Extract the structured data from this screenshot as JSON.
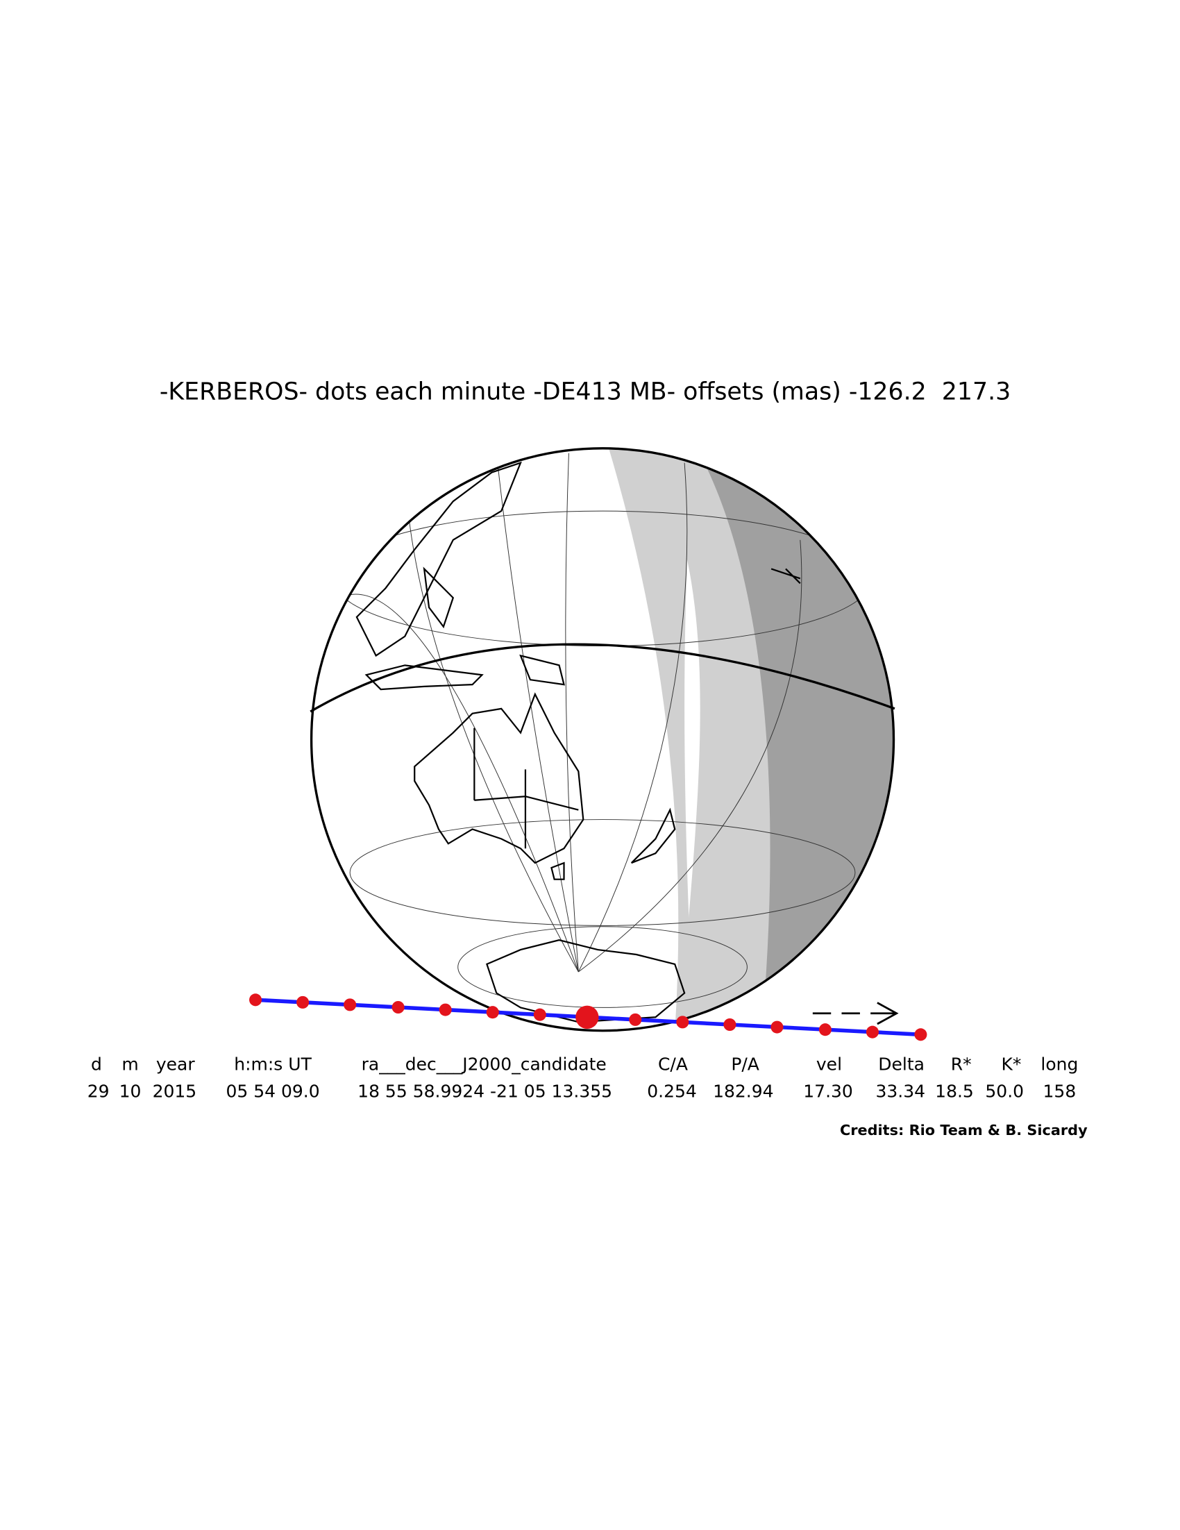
{
  "title": "-KERBEROS- dots each minute -DE413 MB- offsets (mas) -126.2  217.3",
  "table": {
    "headers": [
      "d",
      "m",
      "year",
      "h:m:s UT",
      "ra___dec___J2000_candidate",
      "C/A",
      "P/A",
      "vel",
      "Delta",
      "R*",
      "K*",
      "long"
    ],
    "rows": [
      [
        "29",
        "10",
        "2015",
        "05 54 09.0",
        "18 55 58.9924 -21 05 13.355",
        "0.254",
        "182.94",
        "17.30",
        "33.34",
        "18.5",
        "50.0",
        "158"
      ]
    ]
  },
  "credits": "Credits: Rio Team & B. Sicardy"
}
